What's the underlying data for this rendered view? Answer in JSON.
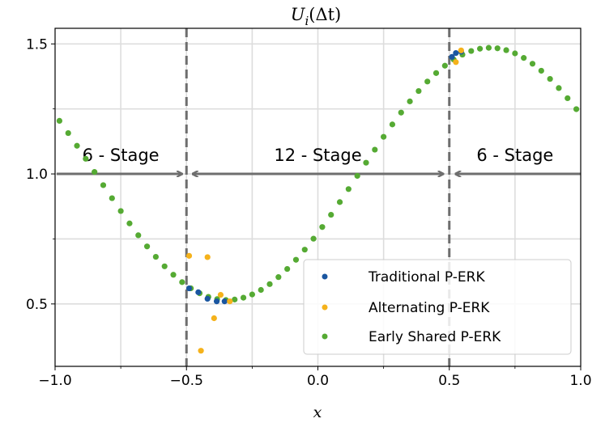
{
  "chart_data": {
    "type": "scatter",
    "title": "U_i(Δt)",
    "title_display": {
      "main": "U",
      "sub": "i",
      "arg": "(Δt)"
    },
    "xlabel": "x",
    "ylabel": "",
    "xlim": [
      -1.0,
      1.0
    ],
    "ylim": [
      0.26,
      1.56
    ],
    "xticks": [
      -1.0,
      -0.5,
      0.0,
      0.5,
      1.0
    ],
    "xtick_labels": [
      "−1.0",
      "−0.5",
      "0.0",
      "0.5",
      "1.0"
    ],
    "yticks": [
      0.5,
      1.0,
      1.5
    ],
    "ytick_labels": [
      "0.5",
      "1.0",
      "1.5"
    ],
    "grid": true,
    "vlines": [
      -0.5,
      0.5
    ],
    "region_annotations": [
      {
        "label": "6 - Stage",
        "x_from": -1.0,
        "x_to": -0.5,
        "y": 1.0
      },
      {
        "label": "12 - Stage",
        "x_from": -0.5,
        "x_to": 0.5,
        "y": 1.0
      },
      {
        "label": "6 - Stage",
        "x_from": 0.5,
        "x_to": 1.0,
        "y": 1.0
      }
    ],
    "legend_position": "lower-right",
    "series": [
      {
        "name": "Traditional P-ERK",
        "color": "#1a56a0",
        "points": [
          [
            -0.49,
            0.56
          ],
          [
            -0.455,
            0.545
          ],
          [
            -0.42,
            0.52
          ],
          [
            -0.385,
            0.51
          ],
          [
            -0.355,
            0.51
          ],
          [
            0.51,
            1.45
          ],
          [
            0.525,
            1.465
          ],
          [
            0.545,
            1.47
          ]
        ]
      },
      {
        "name": "Alternating P-ERK",
        "color": "#f5b21b",
        "points": [
          [
            -0.49,
            0.685
          ],
          [
            -0.42,
            0.68
          ],
          [
            -0.445,
            0.32
          ],
          [
            -0.395,
            0.445
          ],
          [
            -0.37,
            0.535
          ],
          [
            -0.335,
            0.51
          ],
          [
            0.525,
            1.43
          ],
          [
            0.545,
            1.475
          ]
        ]
      },
      {
        "name": "Early Shared P-ERK",
        "color": "#55aa33",
        "points": "sine"
      }
    ]
  },
  "legend": {
    "items": [
      "Traditional P-ERK",
      "Alternating P-ERK",
      "Early Shared P-ERK"
    ]
  }
}
